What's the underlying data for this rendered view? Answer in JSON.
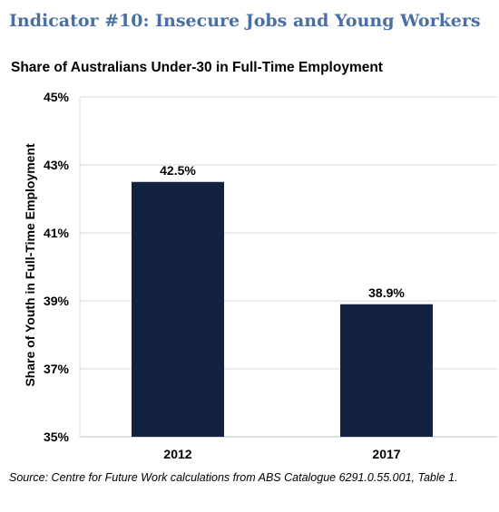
{
  "heading": "Indicator #10: Insecure Jobs and Young Workers",
  "source": "Source: Centre for Future Work calculations from ABS Catalogue 6291.0.55.001, Table 1.",
  "colors": {
    "bar": "#13233f",
    "heading": "#4a6fa5",
    "grid": "#d9d9d9"
  },
  "chart_data": {
    "type": "bar",
    "title": "Share of Australians Under-30 in Full-Time Employment",
    "xlabel": "",
    "ylabel": "Share of Youth in Full-Time Employment",
    "categories": [
      "2012",
      "2017"
    ],
    "values": [
      42.5,
      38.9
    ],
    "data_labels": [
      "42.5%",
      "38.9%"
    ],
    "ylim": [
      35,
      45
    ],
    "yticks": [
      35,
      37,
      39,
      41,
      43,
      45
    ],
    "ytick_labels": [
      "35%",
      "37%",
      "39%",
      "41%",
      "43%",
      "45%"
    ],
    "grid": true,
    "legend": "none"
  }
}
